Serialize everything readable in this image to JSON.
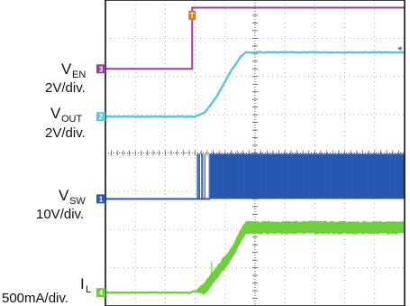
{
  "chart_data": {
    "type": "line",
    "grid": true,
    "x_divisions": 10,
    "y_divisions": 8,
    "trigger_marker": "T",
    "series": [
      {
        "key": "ven",
        "name_main": "V",
        "name_sub": "EN",
        "scale": "2V/div.",
        "channel_marker": "3",
        "color": "#9b3d9f",
        "baseline_div": 6.2,
        "points": [
          [
            0,
            6.2
          ],
          [
            2.9,
            6.2
          ],
          [
            2.9,
            7.8
          ],
          [
            10,
            7.8
          ]
        ]
      },
      {
        "key": "vout",
        "name_main": "V",
        "name_sub": "OUT",
        "scale": "2V/div.",
        "channel_marker": "2",
        "color": "#5dc6cf",
        "baseline_div": 4.95,
        "points": [
          [
            0,
            4.95
          ],
          [
            3.0,
            4.95
          ],
          [
            3.3,
            5.05
          ],
          [
            3.7,
            5.45
          ],
          [
            4.2,
            6.15
          ],
          [
            4.55,
            6.55
          ],
          [
            4.7,
            6.63
          ],
          [
            10,
            6.63
          ]
        ]
      },
      {
        "key": "vsw",
        "name_main": "V",
        "name_sub": "SW",
        "scale": "10V/div.",
        "channel_marker": "1",
        "color": "#2a5ab5",
        "baseline_div": 2.8,
        "high_div": 3.98,
        "switching_start_div": 3.0,
        "full_switching_div": 3.5
      },
      {
        "key": "il",
        "name_main": "I",
        "name_sub": "L",
        "scale": "500mA/div.",
        "channel_marker": "4",
        "color": "#6fcf3a",
        "baseline_div": 0.35,
        "points": [
          [
            0,
            0.35
          ],
          [
            2.8,
            0.35
          ],
          [
            3.3,
            0.45
          ],
          [
            3.7,
            0.85
          ],
          [
            4.2,
            1.35
          ],
          [
            4.6,
            1.95
          ],
          [
            4.7,
            2.05
          ],
          [
            10,
            2.05
          ]
        ],
        "ripple_div": 0.3
      }
    ],
    "ref_marker_right": "◂"
  }
}
